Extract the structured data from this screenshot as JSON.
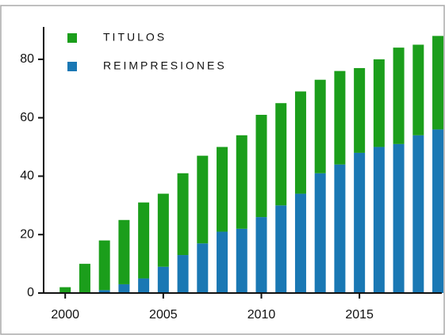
{
  "chart_data": {
    "type": "stacked_bar",
    "x": [
      2000,
      2001,
      2002,
      2003,
      2004,
      2005,
      2006,
      2007,
      2008,
      2009,
      2010,
      2011,
      2012,
      2013,
      2014,
      2015,
      2016,
      2017,
      2018,
      2019
    ],
    "series": [
      {
        "name": "TITULOS",
        "color": "#1b9e1b",
        "values": [
          2,
          10,
          17,
          22,
          26,
          25,
          28,
          30,
          29,
          32,
          35,
          35,
          35,
          32,
          32,
          29,
          30,
          33,
          31,
          32
        ]
      },
      {
        "name": "REIMPRESIONES",
        "color": "#1a78b4",
        "values": [
          0,
          0,
          1,
          3,
          5,
          9,
          13,
          17,
          21,
          22,
          26,
          30,
          34,
          41,
          44,
          48,
          50,
          51,
          54,
          56
        ]
      }
    ],
    "xlim": [
      1998.9,
      2019.2
    ],
    "xticks": [
      2000,
      2005,
      2010,
      2015
    ],
    "ylim": [
      0,
      90
    ],
    "yticks": [
      0,
      20,
      40,
      60,
      80
    ]
  }
}
